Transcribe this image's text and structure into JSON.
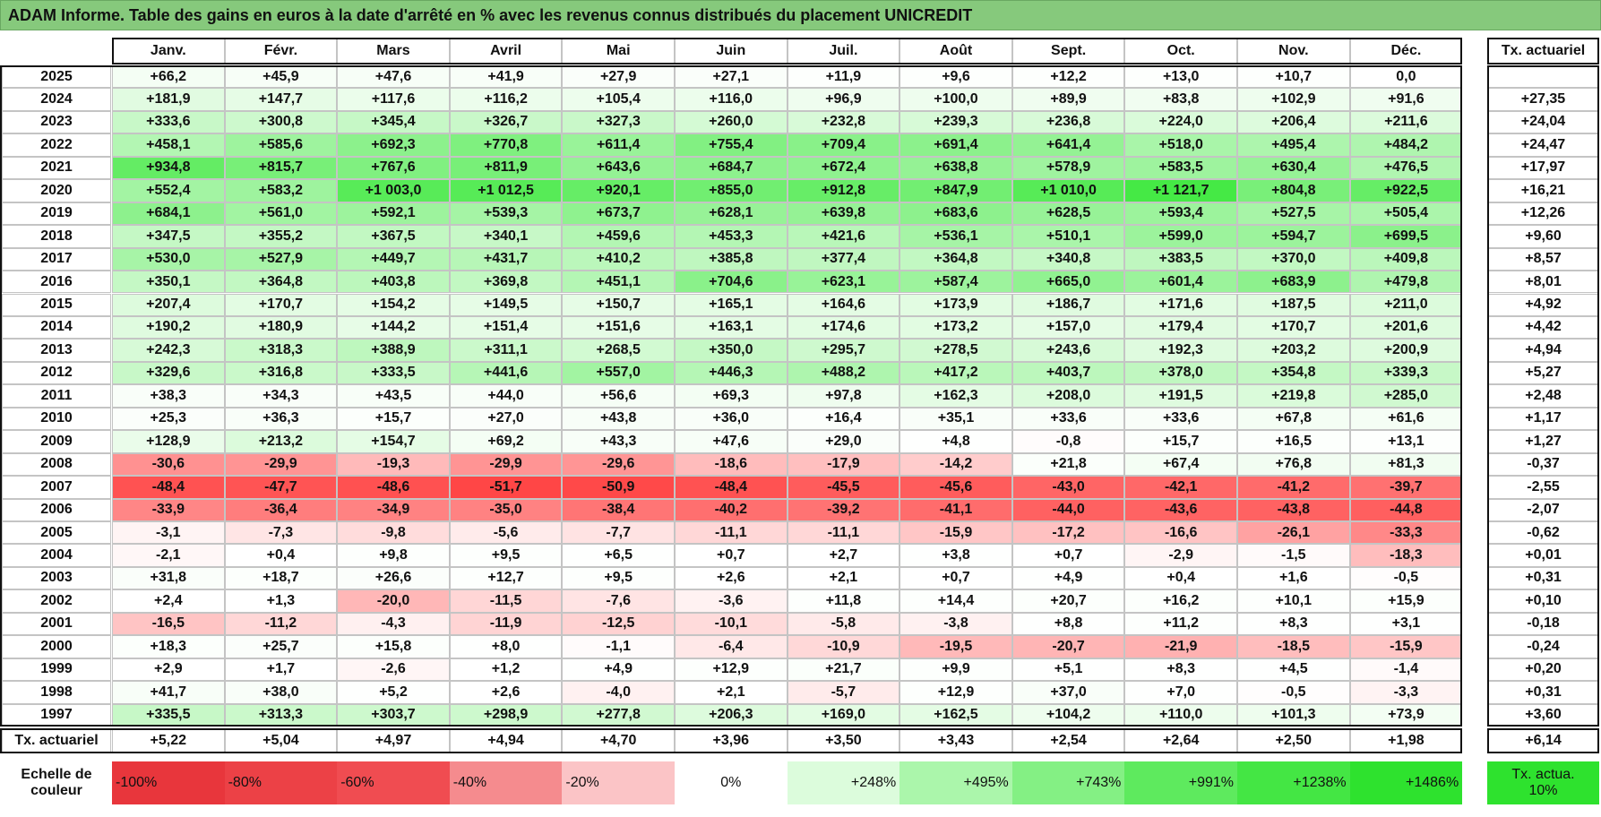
{
  "title": "ADAM Informe. Table des gains en euros à la date d'arrêté en % avec les revenus connus distribués du placement UNICREDIT",
  "table": {
    "months": [
      "Janv.",
      "Févr.",
      "Mars",
      "Avril",
      "Mai",
      "Juin",
      "Juil.",
      "Août",
      "Sept.",
      "Oct.",
      "Nov.",
      "Déc."
    ],
    "rate_header": "Tx. actuariel",
    "rows": [
      {
        "year": "2025",
        "values": [
          "+66,2",
          "+45,9",
          "+47,6",
          "+41,9",
          "+27,9",
          "+27,1",
          "+11,9",
          "+9,6",
          "+12,2",
          "+13,0",
          "+10,7",
          "0,0"
        ],
        "rate": null
      },
      {
        "year": "2024",
        "values": [
          "+181,9",
          "+147,7",
          "+117,6",
          "+116,2",
          "+105,4",
          "+116,0",
          "+96,9",
          "+100,0",
          "+89,9",
          "+83,8",
          "+102,9",
          "+91,6"
        ],
        "rate": "+27,35"
      },
      {
        "year": "2023",
        "values": [
          "+333,6",
          "+300,8",
          "+345,4",
          "+326,7",
          "+327,3",
          "+260,0",
          "+232,8",
          "+239,3",
          "+236,8",
          "+224,0",
          "+206,4",
          "+211,6"
        ],
        "rate": "+24,04"
      },
      {
        "year": "2022",
        "values": [
          "+458,1",
          "+585,6",
          "+692,3",
          "+770,8",
          "+611,4",
          "+755,4",
          "+709,4",
          "+691,4",
          "+641,4",
          "+518,0",
          "+495,4",
          "+484,2"
        ],
        "rate": "+24,47"
      },
      {
        "year": "2021",
        "values": [
          "+934,8",
          "+815,7",
          "+767,6",
          "+811,9",
          "+643,6",
          "+684,7",
          "+672,4",
          "+638,8",
          "+578,9",
          "+583,5",
          "+630,4",
          "+476,5"
        ],
        "rate": "+17,97"
      },
      {
        "year": "2020",
        "values": [
          "+552,4",
          "+583,2",
          "+1 003,0",
          "+1 012,5",
          "+920,1",
          "+855,0",
          "+912,8",
          "+847,9",
          "+1 010,0",
          "+1 121,7",
          "+804,8",
          "+922,5"
        ],
        "rate": "+16,21"
      },
      {
        "year": "2019",
        "values": [
          "+684,1",
          "+561,0",
          "+592,1",
          "+539,3",
          "+673,7",
          "+628,1",
          "+639,8",
          "+683,6",
          "+628,5",
          "+593,4",
          "+527,5",
          "+505,4"
        ],
        "rate": "+12,26"
      },
      {
        "year": "2018",
        "values": [
          "+347,5",
          "+355,2",
          "+367,5",
          "+340,1",
          "+459,6",
          "+453,3",
          "+421,6",
          "+536,1",
          "+510,1",
          "+599,0",
          "+594,7",
          "+699,5"
        ],
        "rate": "+9,60"
      },
      {
        "year": "2017",
        "values": [
          "+530,0",
          "+527,9",
          "+449,7",
          "+431,7",
          "+410,2",
          "+385,8",
          "+377,4",
          "+364,8",
          "+340,8",
          "+383,5",
          "+370,0",
          "+409,8"
        ],
        "rate": "+8,57"
      },
      {
        "year": "2016",
        "values": [
          "+350,1",
          "+364,8",
          "+403,8",
          "+369,8",
          "+451,1",
          "+704,6",
          "+623,1",
          "+587,4",
          "+665,0",
          "+601,4",
          "+683,9",
          "+479,8"
        ],
        "rate": "+8,01"
      },
      {
        "year": "2015",
        "values": [
          "+207,4",
          "+170,7",
          "+154,2",
          "+149,5",
          "+150,7",
          "+165,1",
          "+164,6",
          "+173,9",
          "+186,7",
          "+171,6",
          "+187,5",
          "+211,0"
        ],
        "rate": "+4,92"
      },
      {
        "year": "2014",
        "values": [
          "+190,2",
          "+180,9",
          "+144,2",
          "+151,4",
          "+151,6",
          "+163,1",
          "+174,6",
          "+173,2",
          "+157,0",
          "+179,4",
          "+170,7",
          "+201,6"
        ],
        "rate": "+4,42"
      },
      {
        "year": "2013",
        "values": [
          "+242,3",
          "+318,3",
          "+388,9",
          "+311,1",
          "+268,5",
          "+350,0",
          "+295,7",
          "+278,5",
          "+243,6",
          "+192,3",
          "+203,2",
          "+200,9"
        ],
        "rate": "+4,94"
      },
      {
        "year": "2012",
        "values": [
          "+329,6",
          "+316,8",
          "+333,5",
          "+441,6",
          "+557,0",
          "+446,3",
          "+488,2",
          "+417,2",
          "+403,7",
          "+378,0",
          "+354,8",
          "+339,3"
        ],
        "rate": "+5,27"
      },
      {
        "year": "2011",
        "values": [
          "+38,3",
          "+34,3",
          "+43,5",
          "+44,0",
          "+56,6",
          "+69,3",
          "+97,8",
          "+162,3",
          "+208,0",
          "+191,5",
          "+219,8",
          "+285,0"
        ],
        "rate": "+2,48"
      },
      {
        "year": "2010",
        "values": [
          "+25,3",
          "+36,3",
          "+15,7",
          "+27,0",
          "+43,8",
          "+36,0",
          "+16,4",
          "+35,1",
          "+33,6",
          "+33,6",
          "+67,8",
          "+61,6"
        ],
        "rate": "+1,17"
      },
      {
        "year": "2009",
        "values": [
          "+128,9",
          "+213,2",
          "+154,7",
          "+69,2",
          "+43,3",
          "+47,6",
          "+29,0",
          "+4,8",
          "-0,8",
          "+15,7",
          "+16,5",
          "+13,1"
        ],
        "rate": "+1,27"
      },
      {
        "year": "2008",
        "values": [
          "-30,6",
          "-29,9",
          "-19,3",
          "-29,9",
          "-29,6",
          "-18,6",
          "-17,9",
          "-14,2",
          "+21,8",
          "+67,4",
          "+76,8",
          "+81,3"
        ],
        "rate": "-0,37"
      },
      {
        "year": "2007",
        "values": [
          "-48,4",
          "-47,7",
          "-48,6",
          "-51,7",
          "-50,9",
          "-48,4",
          "-45,5",
          "-45,6",
          "-43,0",
          "-42,1",
          "-41,2",
          "-39,7"
        ],
        "rate": "-2,55"
      },
      {
        "year": "2006",
        "values": [
          "-33,9",
          "-36,4",
          "-34,9",
          "-35,0",
          "-38,4",
          "-40,2",
          "-39,2",
          "-41,1",
          "-44,0",
          "-43,6",
          "-43,8",
          "-44,8"
        ],
        "rate": "-2,07"
      },
      {
        "year": "2005",
        "values": [
          "-3,1",
          "-7,3",
          "-9,8",
          "-5,6",
          "-7,7",
          "-11,1",
          "-11,1",
          "-15,9",
          "-17,2",
          "-16,6",
          "-26,1",
          "-33,3"
        ],
        "rate": "-0,62"
      },
      {
        "year": "2004",
        "values": [
          "-2,1",
          "+0,4",
          "+9,8",
          "+9,5",
          "+6,5",
          "+0,7",
          "+2,7",
          "+3,8",
          "+0,7",
          "-2,9",
          "-1,5",
          "-18,3"
        ],
        "rate": "+0,01"
      },
      {
        "year": "2003",
        "values": [
          "+31,8",
          "+18,7",
          "+26,6",
          "+12,7",
          "+9,5",
          "+2,6",
          "+2,1",
          "+0,7",
          "+4,9",
          "+0,4",
          "+1,6",
          "-0,5"
        ],
        "rate": "+0,31"
      },
      {
        "year": "2002",
        "values": [
          "+2,4",
          "+1,3",
          "-20,0",
          "-11,5",
          "-7,6",
          "-3,6",
          "+11,8",
          "+14,4",
          "+20,7",
          "+16,2",
          "+10,1",
          "+15,9"
        ],
        "rate": "+0,10"
      },
      {
        "year": "2001",
        "values": [
          "-16,5",
          "-11,2",
          "-4,3",
          "-11,9",
          "-12,5",
          "-10,1",
          "-5,8",
          "-3,8",
          "+8,8",
          "+11,2",
          "+8,3",
          "+3,1"
        ],
        "rate": "-0,18"
      },
      {
        "year": "2000",
        "values": [
          "+18,3",
          "+25,7",
          "+15,8",
          "+8,0",
          "-1,1",
          "-6,4",
          "-10,9",
          "-19,5",
          "-20,7",
          "-21,9",
          "-18,5",
          "-15,9"
        ],
        "rate": "-0,24"
      },
      {
        "year": "1999",
        "values": [
          "+2,9",
          "+1,7",
          "-2,6",
          "+1,2",
          "+4,9",
          "+12,9",
          "+21,7",
          "+9,9",
          "+5,1",
          "+8,3",
          "+4,5",
          "-1,4"
        ],
        "rate": "+0,20"
      },
      {
        "year": "1998",
        "values": [
          "+41,7",
          "+38,0",
          "+5,2",
          "+2,6",
          "-4,0",
          "+2,1",
          "-5,7",
          "+12,9",
          "+37,0",
          "+7,0",
          "-0,5",
          "-3,3"
        ],
        "rate": "+0,31"
      },
      {
        "year": "1997",
        "values": [
          "+335,5",
          "+313,3",
          "+303,7",
          "+298,9",
          "+277,8",
          "+206,3",
          "+169,0",
          "+162,5",
          "+104,2",
          "+110,0",
          "+101,3",
          "+73,9"
        ],
        "rate": "+3,60"
      }
    ],
    "footer": {
      "label": "Tx. actuariel",
      "values": [
        "+5,22",
        "+5,04",
        "+4,97",
        "+4,94",
        "+4,70",
        "+3,96",
        "+3,50",
        "+3,43",
        "+2,54",
        "+2,64",
        "+2,50",
        "+1,98"
      ],
      "rate": "+6,14"
    }
  },
  "scale": {
    "label": "Echelle de couleur",
    "entries": [
      {
        "label": "-100%",
        "color": "#e8363c"
      },
      {
        "label": "-80%",
        "color": "#ec4146"
      },
      {
        "label": "-60%",
        "color": "#f04c51"
      },
      {
        "label": "-40%",
        "color": "#f58b8e"
      },
      {
        "label": "-20%",
        "color": "#fbc4c6"
      },
      {
        "label": "0%",
        "color": "#ffffff"
      },
      {
        "label": "+248%",
        "color": "#dcfcdc"
      },
      {
        "label": "+495%",
        "color": "#abf6ab"
      },
      {
        "label": "+743%",
        "color": "#84f084"
      },
      {
        "label": "+991%",
        "color": "#5eea5e"
      },
      {
        "label": "+1238%",
        "color": "#44e644"
      },
      {
        "label": "+1486%",
        "color": "#2ee22e"
      }
    ],
    "rate_label": "Tx. actua. 10%",
    "rate_color": "#2ee22e"
  }
}
